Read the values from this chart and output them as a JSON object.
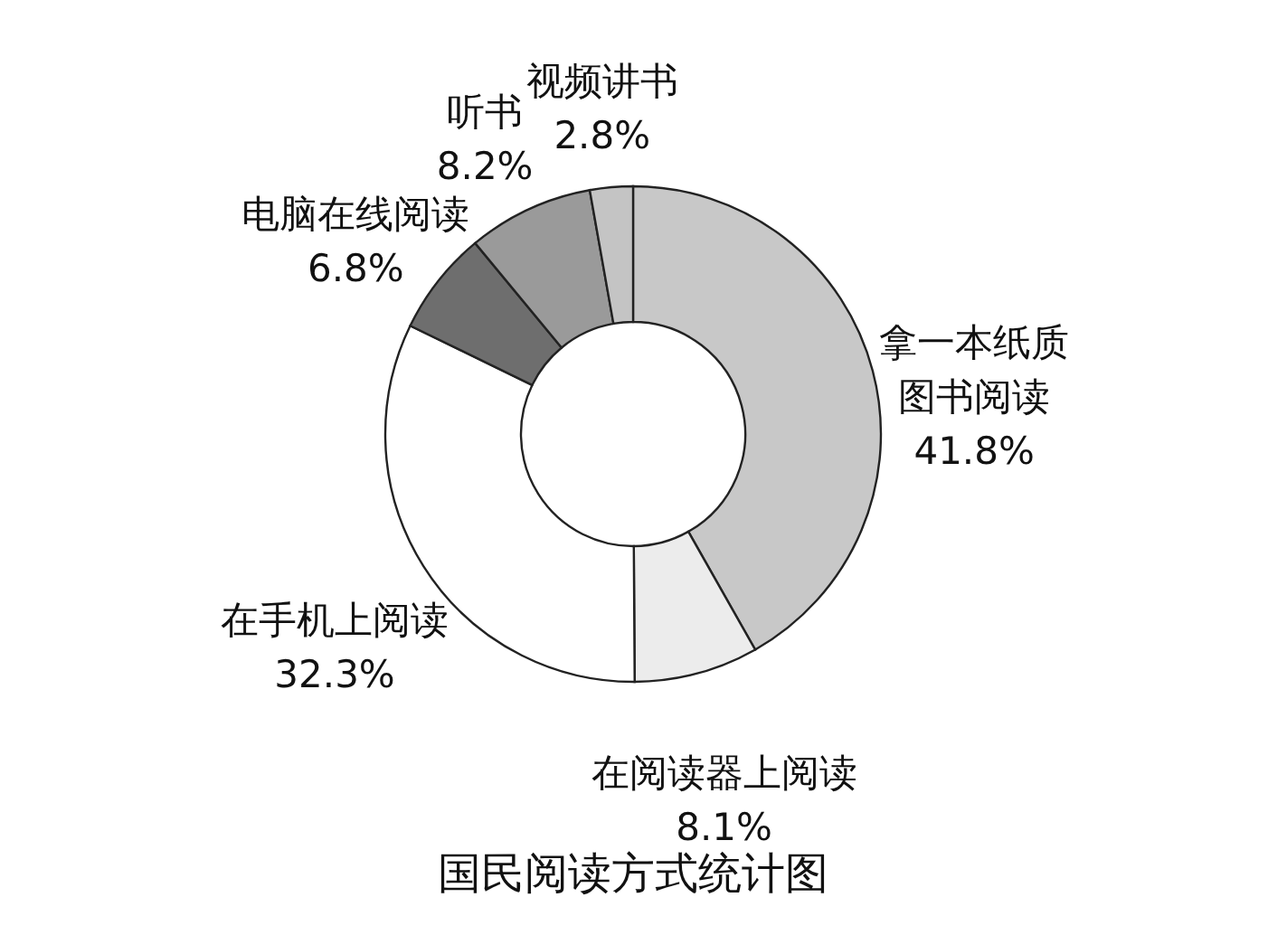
{
  "chart_data": {
    "type": "donut",
    "title": "国民阅读方式统计图",
    "categories": [
      "拿一本纸质图书阅读",
      "在阅读器上阅读",
      "在手机上阅读",
      "电脑在线阅读",
      "听书",
      "视频讲书"
    ],
    "values": [
      41.8,
      8.1,
      32.3,
      6.8,
      8.2,
      2.8
    ],
    "value_labels": [
      "41.8%",
      "8.1%",
      "32.3%",
      "6.8%",
      "8.2%",
      "2.8%"
    ],
    "colors": [
      "#c8c8c8",
      "#ececec",
      "#ffffff",
      "#6e6e6e",
      "#9a9a9a",
      "#c4c4c4"
    ],
    "legend": false
  }
}
